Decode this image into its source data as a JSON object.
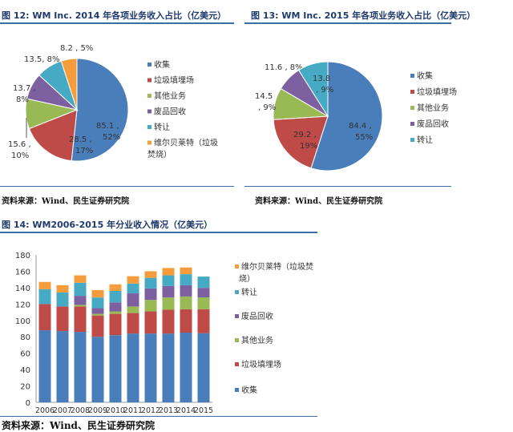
{
  "colors": {
    "收集": "#4a7ebb",
    "垃圾填埋场": "#be4b48",
    "其他业务": "#98b954",
    "废品回收": "#7d60a0",
    "转让": "#46aac5",
    "维尔贝莱特（垃圾焚烧）": "#f59d3d"
  },
  "source_text": "资料来源：Wind、民生证券研究院",
  "chart_data": [
    {
      "type": "pie",
      "title": "图 12: WM Inc. 2014 年各项业务收入占比（亿美元）",
      "categories": [
        "收集",
        "垃圾填埋场",
        "其他业务",
        "废品回收",
        "转让",
        "维尔贝莱特（垃圾焚烧）"
      ],
      "legend_labels": [
        "收集",
        "垃圾填埋场",
        "其他业务",
        "废品回收",
        "转让",
        "维尔贝莱特（垃圾",
        "焚烧）"
      ],
      "values": [
        85.1,
        28.5,
        15.6,
        13.7,
        13.5,
        8.2
      ],
      "percent_labels": [
        "52%",
        "17%",
        "10%",
        "8%",
        "8%",
        "5%"
      ],
      "value_labels": [
        "85.1 ,",
        "28.5 ,",
        "15.6 ,",
        "13.7 ,",
        "13.5, 8%",
        "8.2 , 5%"
      ],
      "legend": "right"
    },
    {
      "type": "pie",
      "title": "图 13: WM Inc. 2015 年各项业务收入占比（亿美元）",
      "categories": [
        "收集",
        "垃圾填埋场",
        "其他业务",
        "废品回收",
        "转让"
      ],
      "legend_labels": [
        "收集",
        "垃圾填埋场",
        "其他业务",
        "废品回收",
        "转让"
      ],
      "values": [
        84.4,
        29.2,
        14.5,
        11.6,
        13.8
      ],
      "percent_labels": [
        "55%",
        "19%",
        ", 9%",
        "8%",
        ", 9%"
      ],
      "value_labels": [
        "84.4 ,",
        "29.2 ,",
        "14.5",
        "11.6 , 8%",
        "13.8"
      ],
      "legend": "right"
    },
    {
      "type": "bar",
      "stacked": true,
      "title": "图 14: WM2006-2015 年分业收入情况（亿美元）",
      "categories": [
        "2006",
        "2007",
        "2008",
        "2009",
        "2010",
        "2011",
        "2012",
        "2013",
        "2014",
        "2015"
      ],
      "ylim": [
        0,
        180
      ],
      "yticks": [
        "0",
        "20",
        "40",
        "60",
        "80",
        "100",
        "120",
        "140",
        "160",
        "180"
      ],
      "series": [
        {
          "name": "收集",
          "values": [
            88,
            87,
            86,
            80,
            82,
            84,
            84,
            84,
            85.1,
            84.4
          ]
        },
        {
          "name": "垃圾填埋场",
          "values": [
            32,
            30,
            31,
            26,
            26,
            25,
            27,
            29,
            28.5,
            29.2
          ]
        },
        {
          "name": "其他业务",
          "values": [
            0,
            0,
            2,
            2,
            3,
            8,
            14,
            15,
            15.6,
            14.5
          ]
        },
        {
          "name": "废品回收",
          "values": [
            0,
            0,
            11,
            7,
            11,
            16,
            14,
            14,
            13.7,
            11.6
          ]
        },
        {
          "name": "转让",
          "values": [
            18,
            17,
            16,
            13,
            14,
            12,
            13,
            13,
            13.5,
            13.8
          ]
        },
        {
          "name": "维尔贝莱特（垃圾焚烧）",
          "values": [
            9,
            9,
            9,
            9,
            8,
            9,
            8,
            9,
            8.2,
            0
          ]
        }
      ],
      "legend_labels": [
        "维尔贝莱特（垃圾焚",
        "烧）",
        "转让",
        "废品回收",
        "其他业务",
        "垃圾填埋场",
        "收集"
      ],
      "legend": "right"
    }
  ]
}
